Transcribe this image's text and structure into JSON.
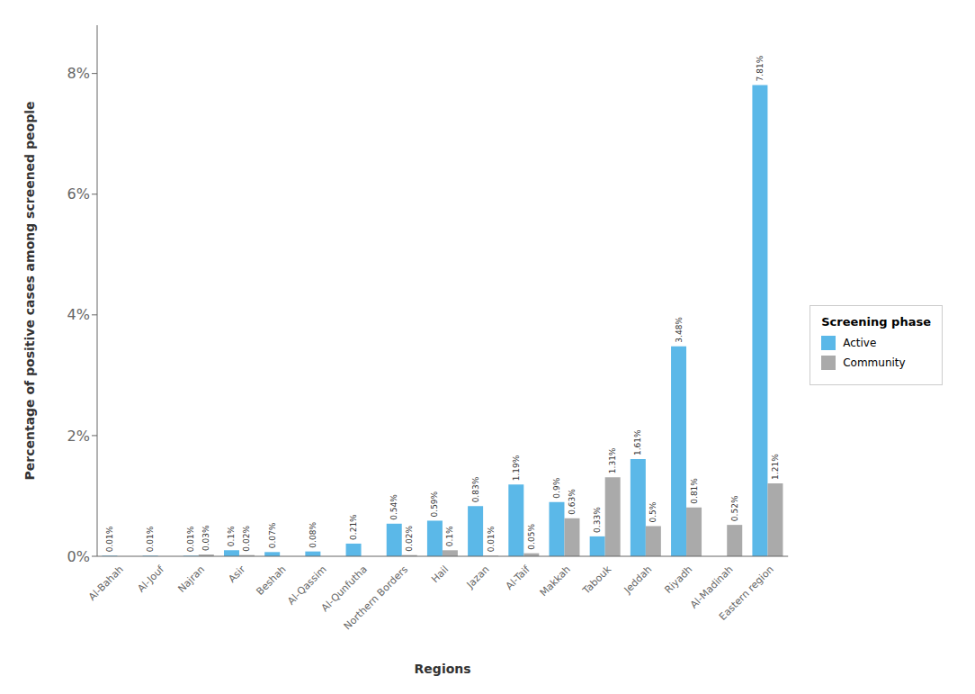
{
  "chart_data": {
    "type": "bar",
    "xlabel": "Regions",
    "ylabel": "Percentage of positive cases among screened people",
    "legend_title": "Screening phase",
    "categories": [
      "Al-Bahah",
      "Al-Jouf",
      "Najran",
      "Asir",
      "Beshah",
      "Al-Qassim",
      "Al-Qunfutha",
      "Northern Borders",
      "Hail",
      "Jazan",
      "Al-Taif",
      "Makkah",
      "Tabouk",
      "Jeddah",
      "Riyadh",
      "Al-Madinah",
      "Eastern region"
    ],
    "series": [
      {
        "name": "Active",
        "color": "#5BB8E8",
        "values": [
          0.0001,
          0.0001,
          0.0001,
          0.001,
          0.0007,
          0.0008,
          0.0021,
          0.0054,
          0.0059,
          0.0083,
          0.0119,
          0.009,
          0.0033,
          0.0161,
          0.0348,
          0.0,
          0.0781
        ],
        "value_labels": [
          "0.01%",
          "0.01%",
          "0.01%",
          "0.1%",
          "0.07%",
          "0.08%",
          "0.21%",
          "0.54%",
          "0.59%",
          "0.83%",
          "1.19%",
          "0.9%",
          "0.33%",
          "1.61%",
          "3.48%",
          null,
          "7.81%"
        ]
      },
      {
        "name": "Community",
        "color": "#AAAAAA",
        "values": [
          0.0,
          0.0,
          0.0003,
          0.0002,
          0.0,
          0.0,
          0.0,
          0.0002,
          0.001,
          0.0001,
          0.0005,
          0.0063,
          0.0131,
          0.005,
          0.0081,
          0.0052,
          0.0121
        ],
        "value_labels": [
          null,
          null,
          "0.03%",
          "0.02%",
          null,
          null,
          null,
          "0.02%",
          "0.1%",
          "0.01%",
          "0.05%",
          "0.63%",
          "1.31%",
          "0.5%",
          "0.81%",
          "0.52%",
          "1.21%"
        ]
      }
    ],
    "ylim": [
      0,
      0.088
    ],
    "yticks": [
      {
        "value": 0.0,
        "label": "0%"
      },
      {
        "value": 0.02,
        "label": "2%"
      },
      {
        "value": 0.04,
        "label": "4%"
      },
      {
        "value": 0.06,
        "label": "6%"
      },
      {
        "value": 0.08,
        "label": "8%"
      }
    ],
    "grid": false,
    "legend": "right",
    "data_labels": true
  }
}
